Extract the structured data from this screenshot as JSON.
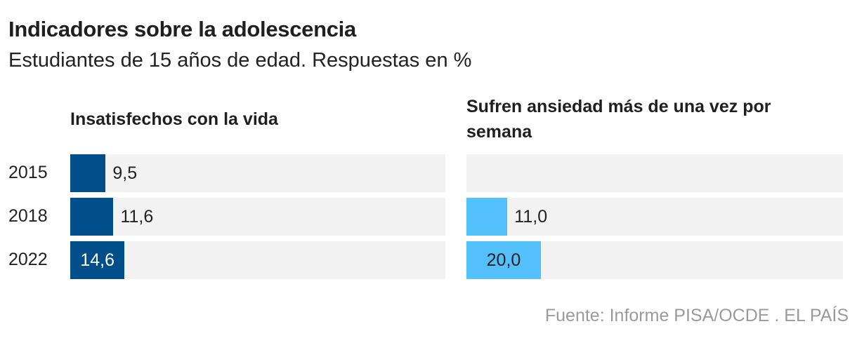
{
  "header": {
    "title": "Indicadores sobre la adolescencia",
    "subtitle": "Estudiantes de 15 años de edad. Respuestas en %"
  },
  "chart_data": [
    {
      "type": "bar",
      "orientation": "horizontal",
      "title": "Insatisfechos con la vida",
      "categories": [
        "2015",
        "2018",
        "2022"
      ],
      "values": [
        9.5,
        11.6,
        14.6
      ],
      "labels": [
        "9,5",
        "11,6",
        "14,6"
      ],
      "xlim": [
        0,
        100
      ],
      "color": "#004f8b"
    },
    {
      "type": "bar",
      "orientation": "horizontal",
      "title": "Sufren ansiedad más de una vez por semana",
      "categories": [
        "2015",
        "2018",
        "2022"
      ],
      "values": [
        null,
        11.0,
        20.0
      ],
      "labels": [
        "",
        "11,0",
        "20,0"
      ],
      "xlim": [
        0,
        100
      ],
      "color": "#53c0fb"
    }
  ],
  "footer": {
    "source": "Fuente: Informe PISA/OCDE . EL PAÍS"
  }
}
